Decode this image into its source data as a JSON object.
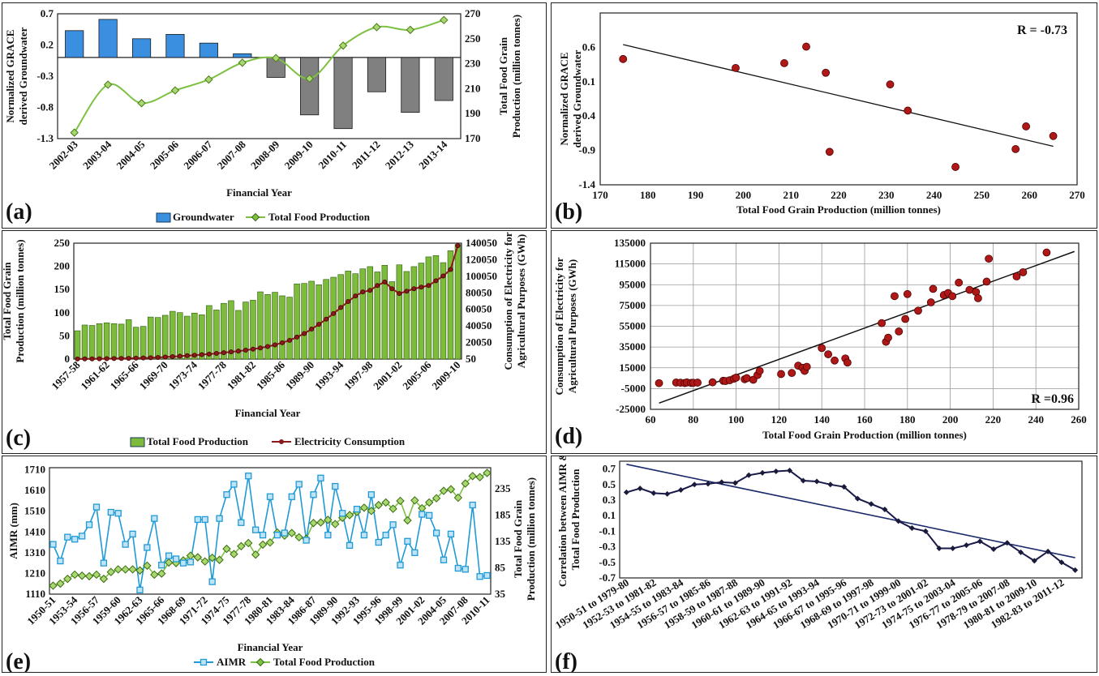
{
  "panels": [
    {
      "id": "a",
      "label": "(a)",
      "type": "bar+line",
      "xlabel": "Financial Year",
      "ylabel_left": "Normalized GRACE derived Groundwater",
      "ylabel_right": "Total Food Grain Production (million tonnes)",
      "left_ticks": [
        "0.7",
        "0.2",
        "-0.3",
        "-0.8",
        "-1.3"
      ],
      "right_ticks": [
        "270",
        "250",
        "230",
        "210",
        "190",
        "170"
      ],
      "categories": [
        "2002-03",
        "2003-04",
        "2004-05",
        "2005-06",
        "2006-07",
        "2007-08",
        "2008-09",
        "2009-10",
        "2010-11",
        "2011-12",
        "2012-13",
        "2013-14"
      ],
      "ylim_left": [
        -1.3,
        0.7
      ],
      "ylim_right": [
        170,
        270
      ],
      "series": [
        {
          "name": "Groundwater",
          "kind": "bar",
          "color_pos": "#3a8fe0",
          "color_neg": "#808080",
          "values": [
            0.43,
            0.61,
            0.3,
            0.37,
            0.23,
            0.06,
            -0.32,
            -0.92,
            -1.14,
            -0.55,
            -0.88,
            -0.69
          ]
        },
        {
          "name": "Total  Food Production",
          "kind": "line",
          "color": "#7cc142",
          "values": [
            174.8,
            213.2,
            198.4,
            208.6,
            217.3,
            230.8,
            234.5,
            218.1,
            244.5,
            259.3,
            257.1,
            265.0
          ]
        }
      ]
    },
    {
      "id": "b",
      "label": "(b)",
      "type": "scatter",
      "xlabel": "Total Food Grain Production (million tonnes)",
      "ylabel": "Normalized GRACE derived Groundwater",
      "annotation": "R = -0.73",
      "xlim": [
        170,
        270
      ],
      "ylim": [
        -1.4,
        1.1
      ],
      "x_ticks": [
        "170",
        "180",
        "190",
        "200",
        "210",
        "220",
        "230",
        "240",
        "250",
        "260",
        "270"
      ],
      "y_ticks": [
        "0.6",
        "0.1",
        "-0.4",
        "-0.9",
        "-1.4"
      ],
      "points": [
        [
          174.8,
          0.43
        ],
        [
          198.4,
          0.3
        ],
        [
          208.6,
          0.37
        ],
        [
          213.2,
          0.61
        ],
        [
          217.3,
          0.23
        ],
        [
          218.1,
          -0.92
        ],
        [
          230.8,
          0.06
        ],
        [
          234.5,
          -0.32
        ],
        [
          244.5,
          -1.14
        ],
        [
          257.1,
          -0.88
        ],
        [
          259.3,
          -0.55
        ],
        [
          265.0,
          -0.69
        ]
      ],
      "trend": [
        [
          174.8,
          0.64
        ],
        [
          265.0,
          -0.84
        ]
      ]
    },
    {
      "id": "c",
      "label": "(c)",
      "type": "bar+line",
      "xlabel": "Financial Year",
      "ylabel_left": "Total Food Grain Production (million tonnes)",
      "ylabel_right": "Consumption of Electricity for Agricultural Purposes  (GWh)",
      "left_ticks": [
        "250",
        "200",
        "150",
        "100",
        "50",
        "0"
      ],
      "right_ticks": [
        "140050",
        "120050",
        "100050",
        "80050",
        "60050",
        "40050",
        "20050",
        "50"
      ],
      "tick_labels": [
        "1957-58",
        "1961-62",
        "1965-66",
        "1969-70",
        "1973-74",
        "1977-78",
        "1981-82",
        "1985-86",
        "1989-90",
        "1993-94",
        "1997-98",
        "2001-02",
        "2005-06",
        "2009-10"
      ],
      "ylim_left": [
        0,
        262
      ],
      "ylim_right": [
        50,
        145000
      ],
      "series": [
        {
          "name": "Total  Food Production",
          "kind": "bar",
          "color": "#7dbb3a",
          "values": [
            64,
            77,
            76,
            80,
            82,
            80,
            79,
            89,
            72,
            74,
            95,
            94,
            99,
            108,
            105,
            97,
            104,
            100,
            121,
            111,
            126,
            132,
            110,
            129,
            133,
            152,
            146,
            151,
            143,
            140,
            170,
            171,
            176,
            168,
            180,
            185,
            191,
            199,
            193,
            204,
            209,
            197,
            212,
            175,
            213,
            198,
            209,
            217,
            231,
            234,
            218,
            245,
            259
          ]
        },
        {
          "name": "Electricity Consumption",
          "kind": "line",
          "color": "#8b1a1a",
          "values": [
            200,
            260,
            330,
            420,
            520,
            640,
            780,
            950,
            1150,
            1400,
            1700,
            2100,
            2600,
            3100,
            3700,
            4300,
            4900,
            5600,
            6300,
            7100,
            8000,
            9000,
            10000,
            11200,
            12500,
            14000,
            15800,
            17800,
            20500,
            23500,
            27500,
            32000,
            37500,
            43500,
            50000,
            57000,
            64500,
            72000,
            79000,
            84000,
            86000,
            92000,
            96500,
            88000,
            82000,
            85000,
            88000,
            90000,
            92000,
            98000,
            104000,
            112000,
            142000
          ]
        }
      ]
    },
    {
      "id": "d",
      "label": "(d)",
      "type": "scatter",
      "xlabel": "Total Food Grain Production (million tonnes)",
      "ylabel": "Consumption of Electricity for Agricultural Purposes  (GWh)",
      "annotation": "R =0.96",
      "xlim": [
        60,
        260
      ],
      "ylim": [
        -25000,
        135000
      ],
      "x_ticks": [
        "60",
        "80",
        "100",
        "120",
        "140",
        "160",
        "180",
        "200",
        "220",
        "240",
        "260"
      ],
      "y_ticks": [
        "135000",
        "115000",
        "95000",
        "75000",
        "55000",
        "35000",
        "15000",
        "-5000",
        "-25000"
      ],
      "points": [
        [
          64,
          200
        ],
        [
          72,
          800
        ],
        [
          74,
          600
        ],
        [
          76,
          300
        ],
        [
          77,
          900
        ],
        [
          79,
          400
        ],
        [
          80,
          500
        ],
        [
          82,
          700
        ],
        [
          89,
          1000
        ],
        [
          94,
          2500
        ],
        [
          95,
          2200
        ],
        [
          97,
          3000
        ],
        [
          99,
          4500
        ],
        [
          100,
          5500
        ],
        [
          104,
          4000
        ],
        [
          105,
          5000
        ],
        [
          108,
          3500
        ],
        [
          110,
          8000
        ],
        [
          111,
          12000
        ],
        [
          121,
          9000
        ],
        [
          126,
          10000
        ],
        [
          129,
          17000
        ],
        [
          131,
          15000
        ],
        [
          132,
          12000
        ],
        [
          133,
          16000
        ],
        [
          140,
          34000
        ],
        [
          143,
          28000
        ],
        [
          146,
          22000
        ],
        [
          151,
          24000
        ],
        [
          152,
          20000
        ],
        [
          168,
          58000
        ],
        [
          170,
          40000
        ],
        [
          171,
          44000
        ],
        [
          174,
          84000
        ],
        [
          176,
          50000
        ],
        [
          179,
          62000
        ],
        [
          180,
          86000
        ],
        [
          185,
          70000
        ],
        [
          191,
          78000
        ],
        [
          192,
          91000
        ],
        [
          197,
          85000
        ],
        [
          199,
          87000
        ],
        [
          201,
          84000
        ],
        [
          204,
          97000
        ],
        [
          209,
          90000
        ],
        [
          212,
          88000
        ],
        [
          213,
          82000
        ],
        [
          217,
          98000
        ],
        [
          218,
          120000
        ],
        [
          231,
          103000
        ],
        [
          234,
          107000
        ],
        [
          245,
          126000
        ]
      ],
      "trend": [
        [
          64,
          -19000
        ],
        [
          258,
          127000
        ]
      ]
    },
    {
      "id": "e",
      "label": "(e)",
      "type": "line",
      "xlabel": "Financial Year",
      "ylabel_left": "AIMR (mm)",
      "ylabel_right": "Total Food Grain Production (million tonnes)",
      "left_ticks": [
        "1710",
        "1610",
        "1510",
        "1410",
        "1310",
        "1210",
        "1110"
      ],
      "right_ticks": [
        "235",
        "185",
        "135",
        "85",
        "35"
      ],
      "tick_labels": [
        "1950-51",
        "1953-54",
        "1956-57",
        "1959-60",
        "1962-63",
        "1965-66",
        "1968-69",
        "1971-72",
        "1974-75",
        "1977-78",
        "1980-81",
        "1983-84",
        "1986-87",
        "1989-90",
        "1992-93",
        "1995-96",
        "1998-99",
        "2001-02",
        "2004-05",
        "2007-08",
        "2010-11"
      ],
      "ylim_left": [
        1110,
        1720
      ],
      "ylim_right": [
        35,
        275
      ],
      "series": [
        {
          "name": "AIMR",
          "kind": "line",
          "color": "#1f9ad6",
          "values": [
            1350,
            1270,
            1385,
            1375,
            1390,
            1445,
            1530,
            1260,
            1505,
            1500,
            1350,
            1400,
            1130,
            1335,
            1475,
            1250,
            1295,
            1280,
            1260,
            1265,
            1470,
            1470,
            1170,
            1475,
            1590,
            1640,
            1455,
            1680,
            1420,
            1395,
            1580,
            1395,
            1405,
            1580,
            1640,
            1370,
            1590,
            1670,
            1395,
            1630,
            1500,
            1345,
            1520,
            1395,
            1590,
            1360,
            1395,
            1445,
            1250,
            1365,
            1310,
            1495,
            1490,
            1405,
            1275,
            1400,
            1235,
            1230,
            1540,
            1195,
            1200
          ]
        },
        {
          "name": "Total  Food Production",
          "kind": "line",
          "color": "#7cc142",
          "values": [
            51,
            55,
            64,
            72,
            70,
            69,
            72,
            64,
            77,
            82,
            82,
            82,
            80,
            89,
            72,
            74,
            95,
            94,
            99,
            108,
            105,
            97,
            104,
            100,
            121,
            111,
            126,
            132,
            110,
            129,
            133,
            152,
            146,
            151,
            143,
            140,
            170,
            171,
            176,
            168,
            180,
            185,
            191,
            199,
            193,
            204,
            209,
            197,
            212,
            175,
            213,
            198,
            209,
            217,
            231,
            234,
            218,
            245,
            259,
            257,
            265
          ]
        }
      ]
    },
    {
      "id": "f",
      "label": "(f)",
      "type": "line",
      "ylabel": "Correlation between AIMR & Total Food Production",
      "y_ticks": [
        "0.7",
        "0.5",
        "0.3",
        "0.1",
        "-0.1",
        "-0.3",
        "-0.5",
        "-0.7"
      ],
      "ylim": [
        -0.7,
        0.8
      ],
      "tick_labels": [
        "1950-51 to 1979-80",
        "1952-53 to 1981-82",
        "1954-55 to 1983-84",
        "1956-57 to 1985-86",
        "1958-59 to 1987-88",
        "1960-61 to 1989-90",
        "1962-63 to 1991-92",
        "1964-65 to 1993-94",
        "1966-67 to 1995-96",
        "1968-69 to 1997-98",
        "1970-71 to 1999-00",
        "1972-73 to 2001-02",
        "1974-75 to 2003-04",
        "1976-77 to 2005-06",
        "1978-79 to 2007-08",
        "1980-81 to 2009-10",
        "1982-83 to 2011-12"
      ],
      "series": [
        {
          "name": "",
          "kind": "line",
          "color": "#1a1a4a",
          "values": [
            0.4,
            0.45,
            0.39,
            0.38,
            0.43,
            0.5,
            0.51,
            0.53,
            0.52,
            0.62,
            0.65,
            0.67,
            0.68,
            0.55,
            0.54,
            0.5,
            0.47,
            0.32,
            0.25,
            0.18,
            0.03,
            -0.06,
            -0.1,
            -0.32,
            -0.32,
            -0.28,
            -0.23,
            -0.33,
            -0.25,
            -0.37,
            -0.48,
            -0.36,
            -0.5,
            -0.6
          ]
        }
      ],
      "trend": [
        [
          0,
          0.76
        ],
        [
          33,
          -0.44
        ]
      ]
    }
  ]
}
